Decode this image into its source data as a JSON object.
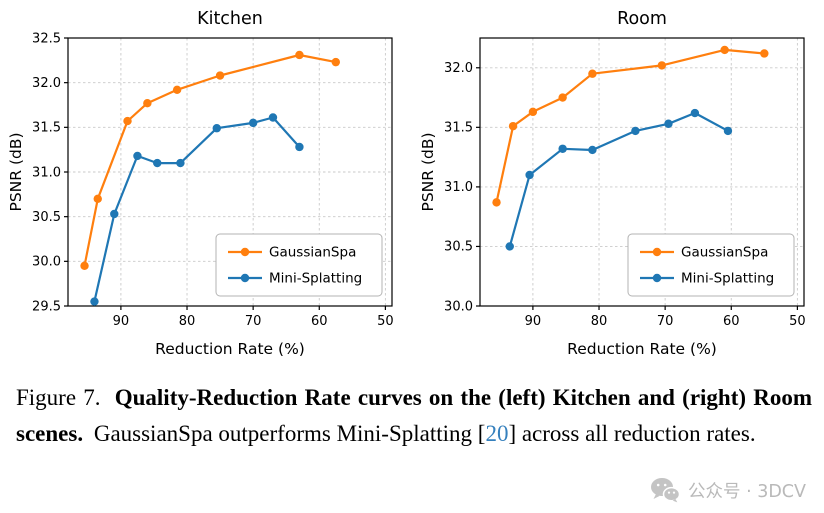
{
  "figure": {
    "caption": {
      "prefix": "Figure 7.",
      "bold": "Quality-Reduction Rate curves on the (left) Kitchen and (right) Room scenes.",
      "rest_before_cite": "GaussianSpa outperforms Mini-Splatting [",
      "cite": "20",
      "rest_after_cite": "] across all reduction rates.",
      "cite_color": "#3580bd"
    },
    "watermark": {
      "text": "公众号 · 3DCV"
    }
  },
  "chart_data": [
    {
      "type": "line",
      "title": "Kitchen",
      "xlabel": "Reduction Rate (%)",
      "ylabel": "PSNR (dB)",
      "xlim": [
        98,
        49
      ],
      "x_axis_reversed": true,
      "ylim": [
        29.5,
        32.5
      ],
      "xticks": [
        90,
        80,
        70,
        60,
        50
      ],
      "yticks": [
        29.5,
        30.0,
        30.5,
        31.0,
        31.5,
        32.0,
        32.5
      ],
      "grid": true,
      "legend_position": "lower right",
      "series": [
        {
          "name": "GaussianSpa",
          "color": "#ff7f0e",
          "x": [
            95.5,
            93.5,
            89,
            86,
            81.5,
            75,
            63,
            57.5
          ],
          "y": [
            29.95,
            30.7,
            31.57,
            31.77,
            31.92,
            32.08,
            32.31,
            32.23
          ]
        },
        {
          "name": "Mini-Splatting",
          "color": "#1f77b4",
          "x": [
            94,
            91,
            87.5,
            84.5,
            81,
            75.5,
            70,
            67,
            63
          ],
          "y": [
            29.55,
            30.53,
            31.18,
            31.1,
            31.1,
            31.49,
            31.55,
            31.61,
            31.28
          ]
        }
      ]
    },
    {
      "type": "line",
      "title": "Room",
      "xlabel": "Reduction Rate (%)",
      "ylabel": "PSNR (dB)",
      "xlim": [
        98,
        49
      ],
      "x_axis_reversed": true,
      "ylim": [
        30.0,
        32.25
      ],
      "xticks": [
        90,
        80,
        70,
        60,
        50
      ],
      "yticks": [
        30.0,
        30.5,
        31.0,
        31.5,
        32.0
      ],
      "grid": true,
      "legend_position": "lower right",
      "series": [
        {
          "name": "GaussianSpa",
          "color": "#ff7f0e",
          "x": [
            95.5,
            93,
            90,
            85.5,
            81,
            70.5,
            61,
            55
          ],
          "y": [
            30.87,
            31.51,
            31.63,
            31.75,
            31.95,
            32.02,
            32.15,
            32.12
          ]
        },
        {
          "name": "Mini-Splatting",
          "color": "#1f77b4",
          "x": [
            93.5,
            90.5,
            85.5,
            81,
            74.5,
            69.5,
            65.5,
            60.5
          ],
          "y": [
            30.5,
            31.1,
            31.32,
            31.31,
            31.47,
            31.53,
            31.62,
            31.47
          ]
        }
      ]
    }
  ]
}
